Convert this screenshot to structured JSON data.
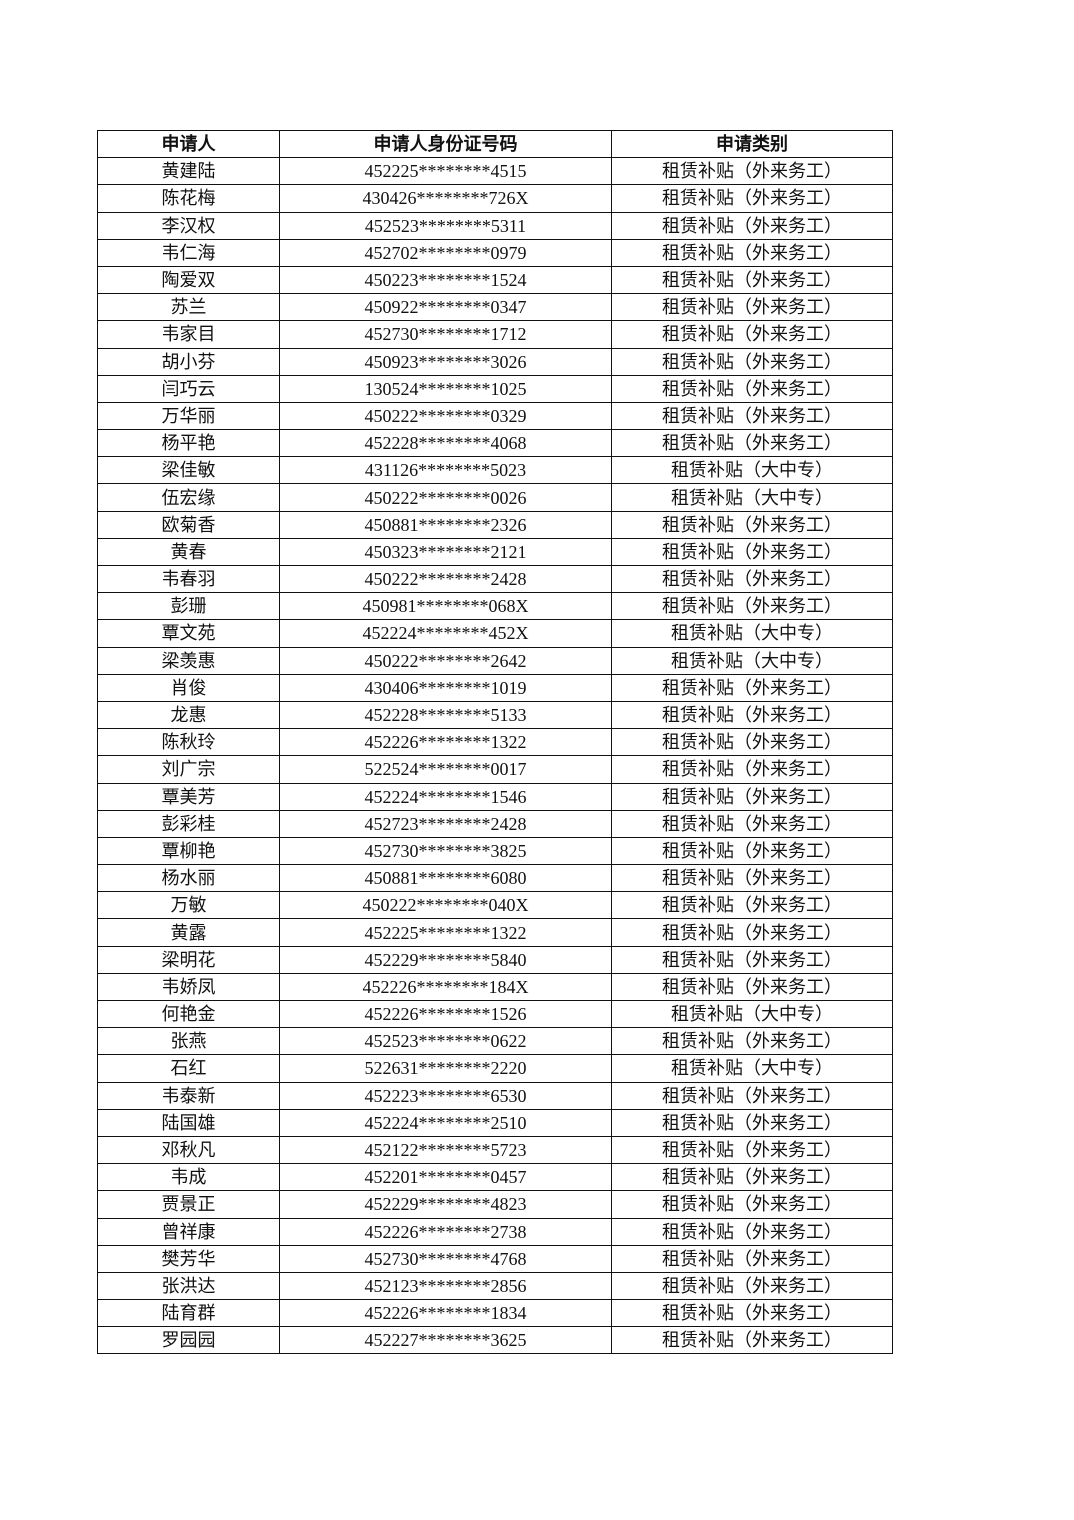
{
  "headers": [
    "申请人",
    "申请人身份证号码",
    "申请类别"
  ],
  "rows": [
    [
      "黄建陆",
      "452225********4515",
      "租赁补贴（外来务工）"
    ],
    [
      "陈花梅",
      "430426********726X",
      "租赁补贴（外来务工）"
    ],
    [
      "李汉权",
      "452523********5311",
      "租赁补贴（外来务工）"
    ],
    [
      "韦仁海",
      "452702********0979",
      "租赁补贴（外来务工）"
    ],
    [
      "陶爱双",
      "450223********1524",
      "租赁补贴（外来务工）"
    ],
    [
      "苏兰",
      "450922********0347",
      "租赁补贴（外来务工）"
    ],
    [
      "韦家目",
      "452730********1712",
      "租赁补贴（外来务工）"
    ],
    [
      "胡小芬",
      "450923********3026",
      "租赁补贴（外来务工）"
    ],
    [
      "闫巧云",
      "130524********1025",
      "租赁补贴（外来务工）"
    ],
    [
      "万华丽",
      "450222********0329",
      "租赁补贴（外来务工）"
    ],
    [
      "杨平艳",
      "452228********4068",
      "租赁补贴（外来务工）"
    ],
    [
      "梁佳敏",
      "431126********5023",
      "租赁补贴（大中专）"
    ],
    [
      "伍宏缘",
      "450222********0026",
      "租赁补贴（大中专）"
    ],
    [
      "欧菊香",
      "450881********2326",
      "租赁补贴（外来务工）"
    ],
    [
      "黄春",
      "450323********2121",
      "租赁补贴（外来务工）"
    ],
    [
      "韦春羽",
      "450222********2428",
      "租赁补贴（外来务工）"
    ],
    [
      "彭珊",
      "450981********068X",
      "租赁补贴（外来务工）"
    ],
    [
      "覃文苑",
      "452224********452X",
      "租赁补贴（大中专）"
    ],
    [
      "梁羡惠",
      "450222********2642",
      "租赁补贴（大中专）"
    ],
    [
      "肖俊",
      "430406********1019",
      "租赁补贴（外来务工）"
    ],
    [
      "龙惠",
      "452228********5133",
      "租赁补贴（外来务工）"
    ],
    [
      "陈秋玲",
      "452226********1322",
      "租赁补贴（外来务工）"
    ],
    [
      "刘广宗",
      "522524********0017",
      "租赁补贴（外来务工）"
    ],
    [
      "覃美芳",
      "452224********1546",
      "租赁补贴（外来务工）"
    ],
    [
      "彭彩桂",
      "452723********2428",
      "租赁补贴（外来务工）"
    ],
    [
      "覃柳艳",
      "452730********3825",
      "租赁补贴（外来务工）"
    ],
    [
      "杨水丽",
      "450881********6080",
      "租赁补贴（外来务工）"
    ],
    [
      "万敏",
      "450222********040X",
      "租赁补贴（外来务工）"
    ],
    [
      "黄露",
      "452225********1322",
      "租赁补贴（外来务工）"
    ],
    [
      "梁明花",
      "452229********5840",
      "租赁补贴（外来务工）"
    ],
    [
      "韦娇凤",
      "452226********184X",
      "租赁补贴（外来务工）"
    ],
    [
      "何艳金",
      "452226********1526",
      "租赁补贴（大中专）"
    ],
    [
      "张燕",
      "452523********0622",
      "租赁补贴（外来务工）"
    ],
    [
      "石红",
      "522631********2220",
      "租赁补贴（大中专）"
    ],
    [
      "韦泰新",
      "452223********6530",
      "租赁补贴（外来务工）"
    ],
    [
      "陆国雄",
      "452224********2510",
      "租赁补贴（外来务工）"
    ],
    [
      "邓秋凡",
      "452122********5723",
      "租赁补贴（外来务工）"
    ],
    [
      "韦成",
      "452201********0457",
      "租赁补贴（外来务工）"
    ],
    [
      "贾景正",
      "452229********4823",
      "租赁补贴（外来务工）"
    ],
    [
      "曾祥康",
      "452226********2738",
      "租赁补贴（外来务工）"
    ],
    [
      "樊芳华",
      "452730********4768",
      "租赁补贴（外来务工）"
    ],
    [
      "张洪达",
      "452123********2856",
      "租赁补贴（外来务工）"
    ],
    [
      "陆育群",
      "452226********1834",
      "租赁补贴（外来务工）"
    ],
    [
      "罗园园",
      "452227********3625",
      "租赁补贴（外来务工）"
    ]
  ]
}
